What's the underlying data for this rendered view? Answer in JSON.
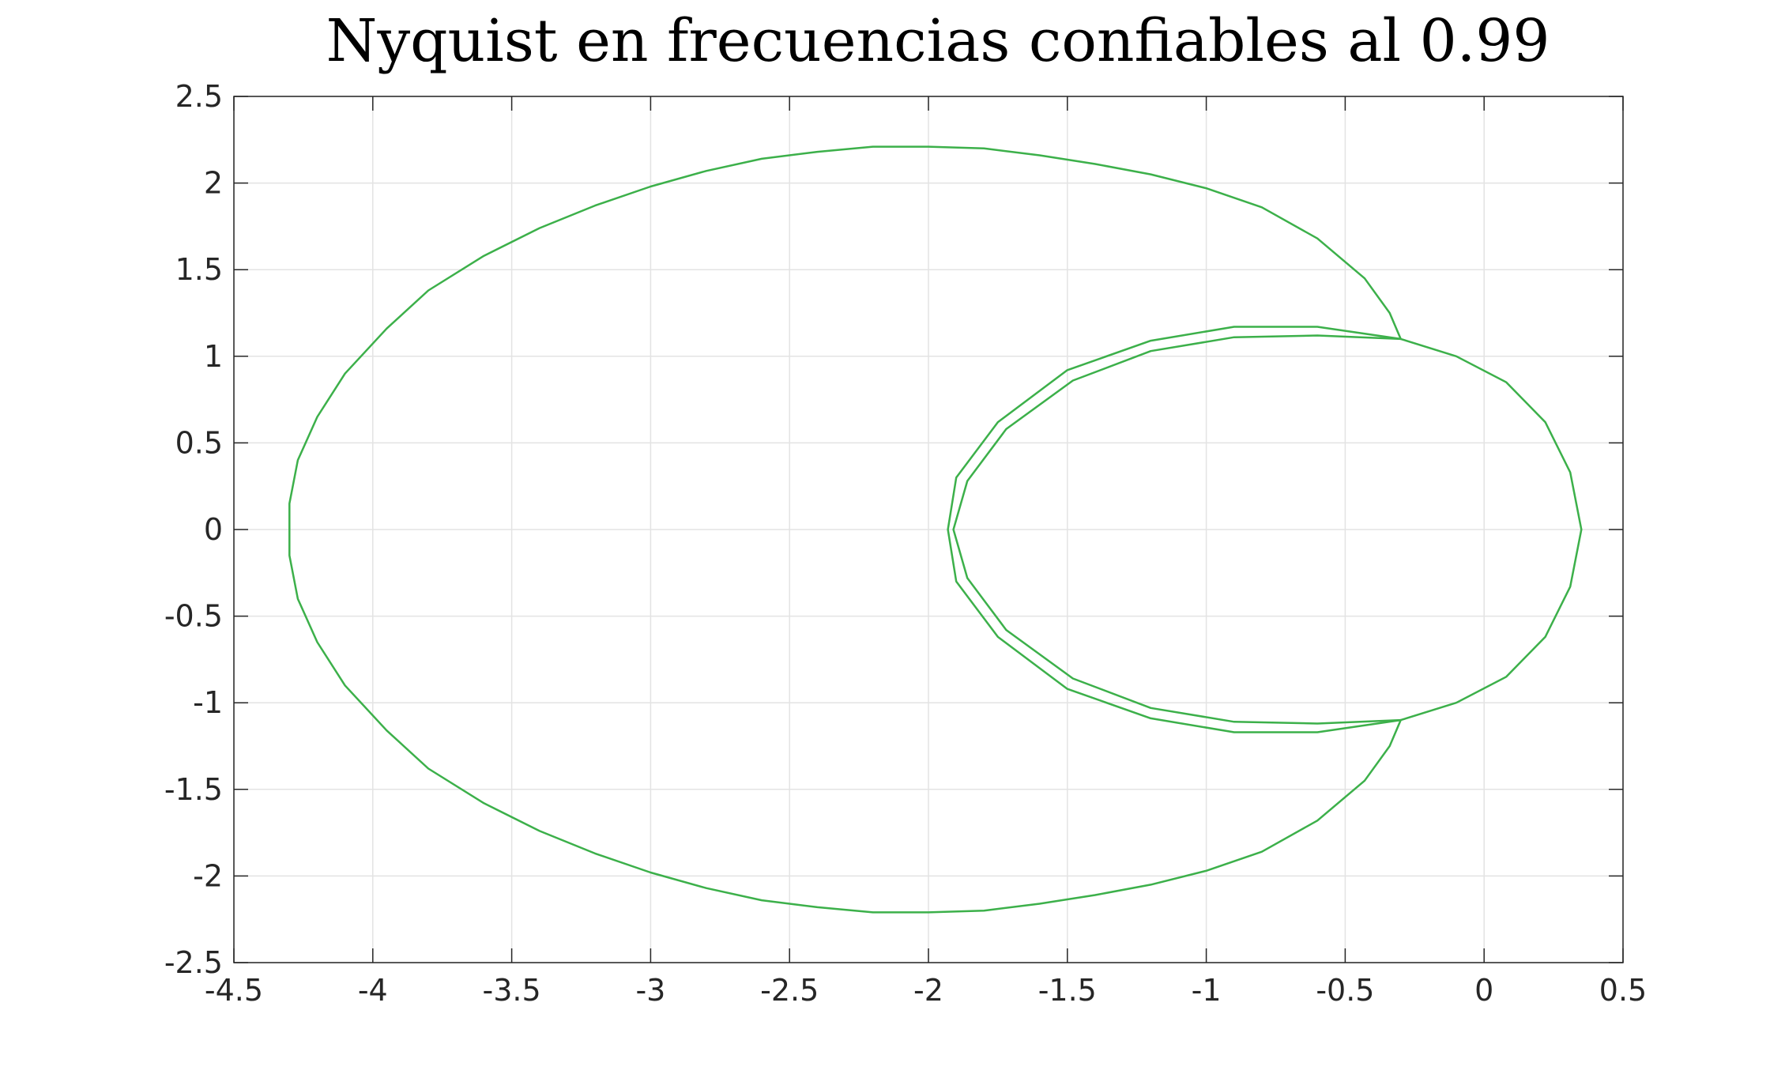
{
  "chart_data": {
    "type": "line",
    "title": "Nyquist en frecuencias confiables al 0.99",
    "xlabel": "",
    "ylabel": "",
    "xlim": [
      -4.5,
      0.5
    ],
    "ylim": [
      -2.5,
      2.5
    ],
    "xticks": [
      -4.5,
      -4,
      -3.5,
      -3,
      -2.5,
      -2,
      -1.5,
      -1,
      -0.5,
      0,
      0.5
    ],
    "xtick_labels": [
      "-4.5",
      "-4",
      "-3.5",
      "-3",
      "-2.5",
      "-2",
      "-1.5",
      "-1",
      "-0.5",
      "0",
      "0.5"
    ],
    "yticks": [
      2.5,
      2,
      1.5,
      1,
      0.5,
      0,
      -0.5,
      -1,
      -1.5,
      -2,
      -2.5
    ],
    "ytick_labels": [
      "2.5",
      "2",
      "1.5",
      "1",
      "0.5",
      "0",
      "-0.5",
      "-1",
      "-1.5",
      "-2",
      "-2.5"
    ],
    "grid": true,
    "line_color": "#3cb04a",
    "series": [
      {
        "values": [
          [
            -0.3,
            1.1
          ],
          [
            -0.34,
            1.25
          ],
          [
            -0.43,
            1.45
          ],
          [
            -0.6,
            1.68
          ],
          [
            -0.8,
            1.86
          ],
          [
            -1.0,
            1.97
          ],
          [
            -1.2,
            2.05
          ],
          [
            -1.4,
            2.11
          ],
          [
            -1.6,
            2.16
          ],
          [
            -1.8,
            2.2
          ],
          [
            -2.0,
            2.21
          ],
          [
            -2.2,
            2.21
          ],
          [
            -2.4,
            2.18
          ],
          [
            -2.6,
            2.14
          ],
          [
            -2.8,
            2.07
          ],
          [
            -3.0,
            1.98
          ],
          [
            -3.2,
            1.87
          ],
          [
            -3.4,
            1.74
          ],
          [
            -3.6,
            1.58
          ],
          [
            -3.8,
            1.38
          ],
          [
            -3.95,
            1.16
          ],
          [
            -4.1,
            0.9
          ],
          [
            -4.2,
            0.65
          ],
          [
            -4.27,
            0.4
          ],
          [
            -4.3,
            0.15
          ],
          [
            -4.3,
            -0.15
          ],
          [
            -4.27,
            -0.4
          ],
          [
            -4.2,
            -0.65
          ],
          [
            -4.1,
            -0.9
          ],
          [
            -3.95,
            -1.16
          ],
          [
            -3.8,
            -1.38
          ],
          [
            -3.6,
            -1.58
          ],
          [
            -3.4,
            -1.74
          ],
          [
            -3.2,
            -1.87
          ],
          [
            -3.0,
            -1.98
          ],
          [
            -2.8,
            -2.07
          ],
          [
            -2.6,
            -2.14
          ],
          [
            -2.4,
            -2.18
          ],
          [
            -2.2,
            -2.21
          ],
          [
            -2.0,
            -2.21
          ],
          [
            -1.8,
            -2.2
          ],
          [
            -1.6,
            -2.16
          ],
          [
            -1.4,
            -2.11
          ],
          [
            -1.2,
            -2.05
          ],
          [
            -1.0,
            -1.97
          ],
          [
            -0.8,
            -1.86
          ],
          [
            -0.6,
            -1.68
          ],
          [
            -0.43,
            -1.45
          ],
          [
            -0.34,
            -1.25
          ],
          [
            -0.3,
            -1.1
          ]
        ]
      },
      {
        "values": [
          [
            -0.3,
            1.1
          ],
          [
            -0.6,
            1.17
          ],
          [
            -0.9,
            1.17
          ],
          [
            -1.2,
            1.09
          ],
          [
            -1.5,
            0.92
          ],
          [
            -1.75,
            0.62
          ],
          [
            -1.9,
            0.3
          ],
          [
            -1.93,
            0.0
          ],
          [
            -1.9,
            -0.3
          ],
          [
            -1.75,
            -0.62
          ],
          [
            -1.5,
            -0.92
          ],
          [
            -1.2,
            -1.09
          ],
          [
            -0.9,
            -1.17
          ],
          [
            -0.6,
            -1.17
          ],
          [
            -0.3,
            -1.1
          ]
        ]
      },
      {
        "values": [
          [
            -0.3,
            1.1
          ],
          [
            -0.6,
            1.12
          ],
          [
            -0.9,
            1.11
          ],
          [
            -1.2,
            1.03
          ],
          [
            -1.48,
            0.86
          ],
          [
            -1.72,
            0.58
          ],
          [
            -1.86,
            0.28
          ],
          [
            -1.91,
            0.0
          ],
          [
            -1.86,
            -0.28
          ],
          [
            -1.72,
            -0.58
          ],
          [
            -1.48,
            -0.86
          ],
          [
            -1.2,
            -1.03
          ],
          [
            -0.9,
            -1.11
          ],
          [
            -0.6,
            -1.12
          ],
          [
            -0.3,
            -1.1
          ]
        ]
      },
      {
        "values": [
          [
            -0.3,
            1.1
          ],
          [
            -0.1,
            1.0
          ],
          [
            0.08,
            0.85
          ],
          [
            0.22,
            0.62
          ],
          [
            0.31,
            0.33
          ],
          [
            0.35,
            0.0
          ],
          [
            0.31,
            -0.33
          ],
          [
            0.22,
            -0.62
          ],
          [
            0.08,
            -0.85
          ],
          [
            -0.1,
            -1.0
          ],
          [
            -0.3,
            -1.1
          ]
        ]
      }
    ]
  }
}
